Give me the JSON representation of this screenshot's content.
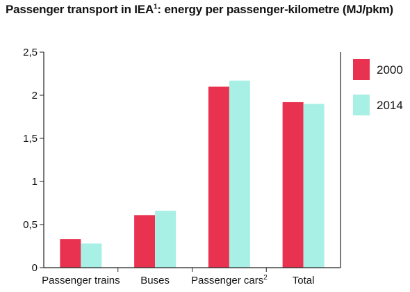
{
  "title": {
    "text": "Passenger transport in IEA",
    "superscript": "1",
    "suffix": ": energy per passenger-kilometre (MJ/pkm)"
  },
  "chart_data": {
    "type": "bar",
    "title": "Passenger transport in IEA1: energy per passenger-kilometre (MJ/pkm)",
    "categories": [
      {
        "label": "Passenger trains",
        "superscript": ""
      },
      {
        "label": "Buses",
        "superscript": ""
      },
      {
        "label": "Passenger cars",
        "superscript": "2"
      },
      {
        "label": "Total",
        "superscript": ""
      }
    ],
    "series": [
      {
        "name": "2000",
        "color": "#e8324f",
        "values": [
          0.33,
          0.61,
          2.1,
          1.92
        ]
      },
      {
        "name": "2014",
        "color": "#a8f0e6",
        "values": [
          0.28,
          0.66,
          2.17,
          1.9
        ]
      }
    ],
    "ylim": [
      0,
      2.5
    ],
    "yticks": [
      {
        "value": 0,
        "label": "0"
      },
      {
        "value": 0.5,
        "label": "0,5"
      },
      {
        "value": 1,
        "label": "1"
      },
      {
        "value": 1.5,
        "label": "1,5"
      },
      {
        "value": 2,
        "label": "2"
      },
      {
        "value": 2.5,
        "label": "2,5"
      }
    ],
    "grid": false,
    "legend": "right",
    "xlabel": "",
    "ylabel": ""
  }
}
